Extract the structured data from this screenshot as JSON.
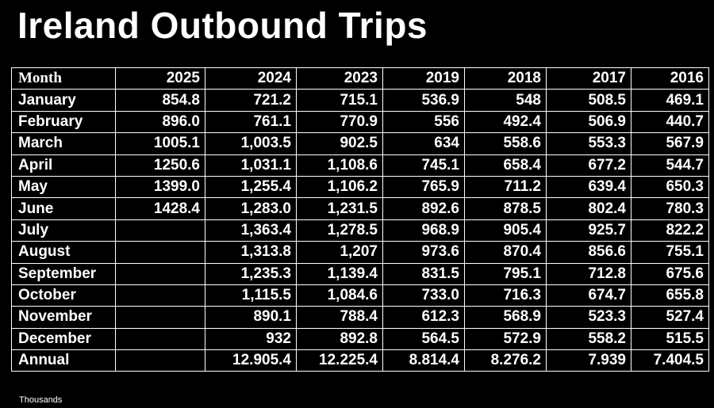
{
  "title": "Ireland Outbound Trips",
  "table": {
    "header": [
      "Month",
      "2025",
      "2024",
      "2023",
      "2019",
      "2018",
      "2017",
      "2016"
    ],
    "rows": [
      [
        "January",
        "854.8",
        "721.2",
        "715.1",
        "536.9",
        "548",
        "508.5",
        "469.1"
      ],
      [
        "February",
        "896.0",
        "761.1",
        "770.9",
        "556",
        "492.4",
        "506.9",
        "440.7"
      ],
      [
        "March",
        "1005.1",
        "1,003.5",
        "902.5",
        "634",
        "558.6",
        "553.3",
        "567.9"
      ],
      [
        "April",
        "1250.6",
        "1,031.1",
        "1,108.6",
        "745.1",
        "658.4",
        "677.2",
        "544.7"
      ],
      [
        "May",
        "1399.0",
        "1,255.4",
        "1,106.2",
        "765.9",
        "711.2",
        "639.4",
        "650.3"
      ],
      [
        "June",
        "1428.4",
        "1,283.0",
        "1,231.5",
        "892.6",
        "878.5",
        "802.4",
        "780.3"
      ],
      [
        "July",
        null,
        "1,363.4",
        "1,278.5",
        "968.9",
        "905.4",
        "925.7",
        "822.2"
      ],
      [
        "August",
        null,
        "1,313.8",
        "1,207",
        "973.6",
        "870.4",
        "856.6",
        "755.1"
      ],
      [
        "September",
        null,
        "1,235.3",
        "1,139.4",
        "831.5",
        "795.1",
        "712.8",
        "675.6"
      ],
      [
        "October",
        null,
        "1,115.5",
        "1,084.6",
        "733.0",
        "716.3",
        "674.7",
        "655.8"
      ],
      [
        "November",
        null,
        "890.1",
        "788.4",
        "612.3",
        "568.9",
        "523.3",
        "527.4"
      ],
      [
        "December",
        null,
        "932",
        "892.8",
        "564.5",
        "572.9",
        "558.2",
        "515.5"
      ],
      [
        "Annual",
        null,
        "12.905.4",
        "12.225.4",
        "8.814.4",
        "8.276.2",
        "7.939",
        "7.404.5"
      ]
    ]
  },
  "footnote": "Thousands"
}
